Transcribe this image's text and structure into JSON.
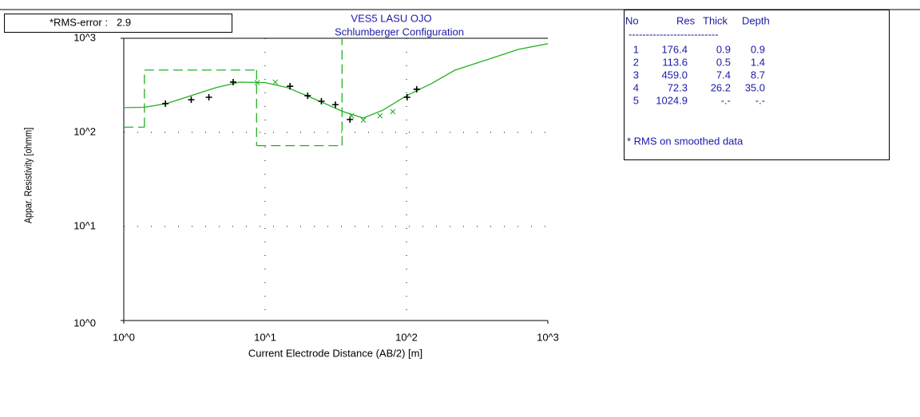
{
  "rms_box": {
    "label": "*RMS-error :",
    "value": "2.9"
  },
  "chart_data": {
    "type": "line",
    "title": "VES5 LASU OJO",
    "subtitle": "Schlumberger Configuration",
    "x_label": "Current Electrode Distance (AB/2) [m]",
    "y_label": "Appar. Resistivity [ohmm]",
    "log_x": true,
    "log_y": true,
    "grid": true,
    "xlim": [
      1,
      1000
    ],
    "ylim": [
      1,
      1000
    ],
    "xticks": [
      {
        "value": 1,
        "label": "10^0"
      },
      {
        "value": 10,
        "label": "10^1"
      },
      {
        "value": 100,
        "label": "10^2"
      },
      {
        "value": 1000,
        "label": "10^3"
      }
    ],
    "yticks": [
      {
        "value": 1,
        "label": "10^0"
      },
      {
        "value": 10,
        "label": "10^1"
      },
      {
        "value": 100,
        "label": "10^2"
      },
      {
        "value": 1000,
        "label": "10^3"
      }
    ],
    "series": [
      {
        "marker": "none",
        "color": "#22b022",
        "x": [
          1,
          1.4,
          2,
          3,
          4.5,
          6.6,
          10,
          14.4,
          23,
          35.7,
          49.5,
          68,
          100,
          150,
          220,
          370,
          620,
          1000
        ],
        "values": [
          183,
          185,
          202,
          246,
          299,
          342,
          338,
          299,
          222,
          166,
          142,
          172,
          245,
          330,
          458,
          590,
          762,
          875
        ]
      },
      {
        "marker": "plus",
        "color": "#000000",
        "x": [
          1.97,
          3.0,
          4.0,
          5.94,
          15,
          20,
          25,
          31.4,
          39.8,
          101,
          118
        ],
        "values": [
          202,
          222,
          236,
          342,
          309,
          245,
          214,
          197,
          137,
          236,
          287
        ]
      },
      {
        "marker": "cross",
        "color": "#22b022",
        "x": [
          8.8,
          11.8,
          40.8,
          49.5,
          65,
          80
        ],
        "values": [
          338,
          342,
          150,
          135,
          150,
          166
        ]
      }
    ],
    "layers": {
      "color": "#22b022",
      "resistivity": [
        176.4,
        113.6,
        459.0,
        72.3,
        1024.9
      ],
      "depth": [
        0.9,
        1.4,
        8.7,
        35.0
      ]
    }
  },
  "table": {
    "header": [
      "No",
      "Res",
      "Thick",
      "Depth"
    ],
    "separator": "--------------------------",
    "rows": [
      [
        "1",
        "176.4",
        "0.9",
        "0.9"
      ],
      [
        "2",
        "113.6",
        "0.5",
        "1.4"
      ],
      [
        "3",
        "459.0",
        "7.4",
        "8.7"
      ],
      [
        "4",
        "72.3",
        "26.2",
        "35.0"
      ],
      [
        "5",
        "1024.9",
        "-.-",
        "-.-"
      ]
    ],
    "note": "* RMS on smoothed data"
  }
}
